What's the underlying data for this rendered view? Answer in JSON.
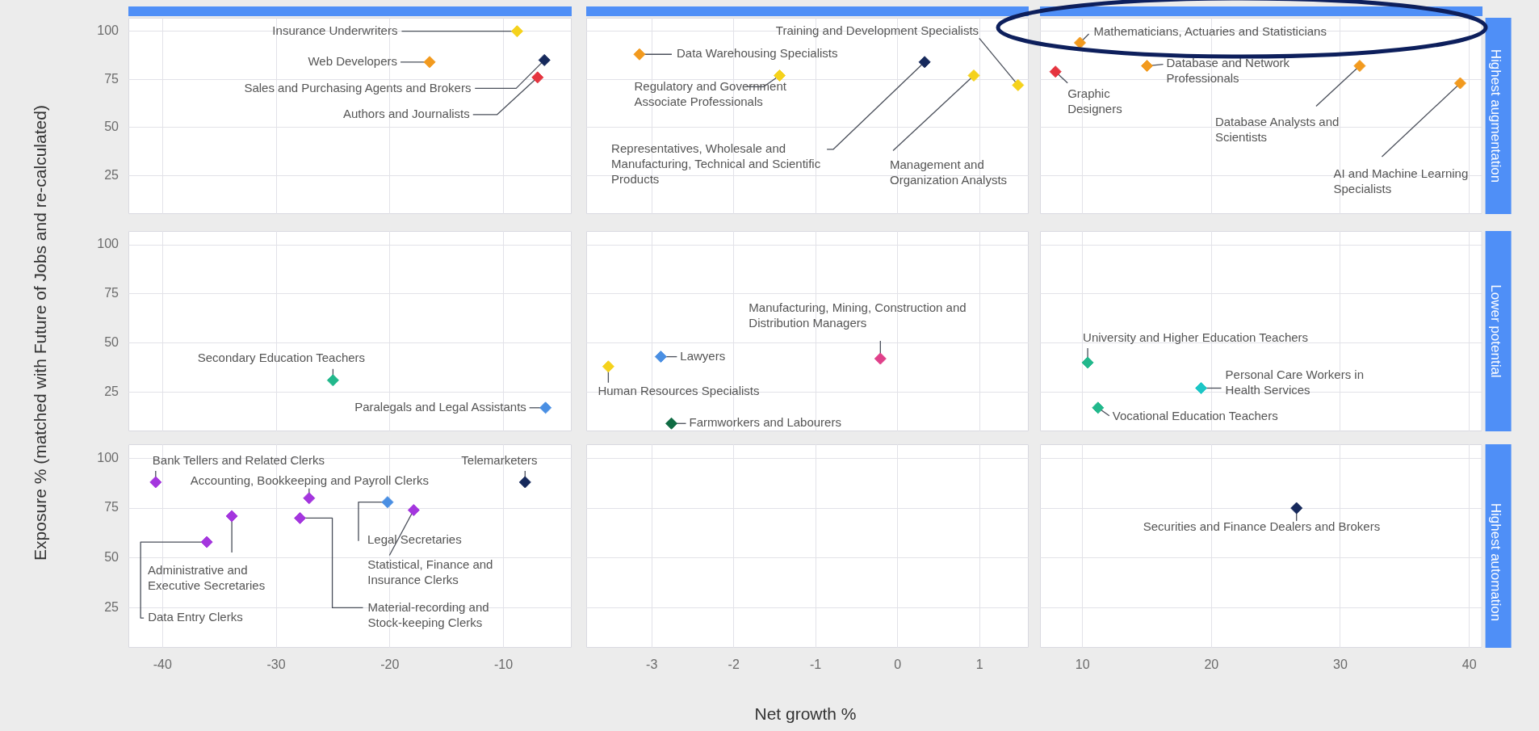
{
  "chart_data": [
    {
      "type": "scatter",
      "x": [
        -8.8,
        -16.5,
        -6.4,
        -7.0
      ],
      "values": [
        100,
        84,
        85,
        76
      ],
      "colors": [
        "#f5d21c",
        "#f29a1e",
        "#16295c",
        "#e5343f"
      ],
      "xlim": [
        -43,
        -4
      ],
      "xticks": [
        -40,
        -30,
        -20,
        -10
      ],
      "ylim": [
        5,
        107
      ],
      "yticks": [
        25,
        50,
        75,
        100
      ],
      "grid": true,
      "marker": "diamond",
      "tick_labels": "y",
      "annotations": [
        {
          "text": "Insurance Underwriters",
          "x": -8.8,
          "y": 100
        },
        {
          "text": "Web Developers",
          "x": -16.5,
          "y": 84
        },
        {
          "text": "Sales and Purchasing Agents and Brokers",
          "x": -6.4,
          "y": 85
        },
        {
          "text": "Authors and Journalists",
          "x": -7.0,
          "y": 76
        }
      ]
    },
    {
      "type": "scatter",
      "x": [
        -3.15,
        -1.44,
        0.33,
        0.93,
        1.47
      ],
      "values": [
        88,
        77,
        84,
        77,
        72
      ],
      "colors": [
        "#f29a1e",
        "#f5d21c",
        "#16295c",
        "#f5d21c",
        "#f5d21c"
      ],
      "xlim": [
        -3.8,
        1.6
      ],
      "xticks": [
        -3,
        -2,
        -1,
        0,
        1
      ],
      "ylim": [
        5,
        107
      ],
      "yticks": [
        25,
        50,
        75,
        100
      ],
      "grid": true,
      "marker": "diamond",
      "tick_labels": false,
      "annotations": [
        {
          "text": "Data Warehousing Specialists",
          "x": -3.15,
          "y": 88
        },
        {
          "text": "Regulatory and Government Associate Professionals",
          "x": -1.44,
          "y": 77
        },
        {
          "text": "Representatives, Wholesale and Manufacturing, Technical and Scientific Products",
          "x": 0.33,
          "y": 84
        },
        {
          "text": "Management and Organization Analysts",
          "x": 0.93,
          "y": 77
        },
        {
          "text": "Training and Development Specialists",
          "x": 1.47,
          "y": 72
        }
      ]
    },
    {
      "type": "scatter",
      "title": "Highest augmentation",
      "x": [
        9.8,
        7.9,
        15,
        31.5,
        39.3
      ],
      "values": [
        94,
        79,
        82,
        82,
        73
      ],
      "colors": [
        "#f29a1e",
        "#e5343f",
        "#f29a1e",
        "#f29a1e",
        "#f29a1e"
      ],
      "xlim": [
        6.7,
        41
      ],
      "xticks": [
        10,
        20,
        30,
        40
      ],
      "ylim": [
        5,
        107
      ],
      "yticks": [
        25,
        50,
        75,
        100
      ],
      "grid": true,
      "marker": "diamond",
      "tick_labels": false,
      "annotations": [
        {
          "text": "Mathematicians, Actuaries and Statisticians",
          "x": 9.8,
          "y": 94
        },
        {
          "text": "Graphic Designers",
          "x": 7.9,
          "y": 79
        },
        {
          "text": "Database and Network Professionals",
          "x": 15,
          "y": 82
        },
        {
          "text": "Database Analysts and Scientists",
          "x": 31.5,
          "y": 82
        },
        {
          "text": "AI and Machine Learning Specialists",
          "x": 39.3,
          "y": 73
        }
      ]
    },
    {
      "type": "scatter",
      "ylabel": "Exposure % (matched with Future of Jobs and re-calculated)",
      "x": [
        -25,
        -6.3
      ],
      "values": [
        31,
        17
      ],
      "colors": [
        "#22b88c",
        "#4a8fe3"
      ],
      "xlim": [
        -43,
        -4
      ],
      "xticks": [
        -40,
        -30,
        -20,
        -10
      ],
      "ylim": [
        5,
        107
      ],
      "yticks": [
        25,
        50,
        75,
        100
      ],
      "grid": true,
      "marker": "diamond",
      "tick_labels": "y",
      "annotations": [
        {
          "text": "Secondary Education Teachers",
          "x": -25,
          "y": 31
        },
        {
          "text": "Paralegals and Legal Assistants",
          "x": -6.3,
          "y": 17
        }
      ]
    },
    {
      "type": "scatter",
      "x": [
        -3.53,
        -2.89,
        -2.76,
        -0.21
      ],
      "values": [
        38,
        43,
        9,
        42
      ],
      "colors": [
        "#f5d21c",
        "#4a8fe3",
        "#0f6b43",
        "#e0408a"
      ],
      "xlim": [
        -3.8,
        1.6
      ],
      "xticks": [
        -3,
        -2,
        -1,
        0,
        1
      ],
      "ylim": [
        5,
        107
      ],
      "yticks": [
        25,
        50,
        75,
        100
      ],
      "grid": true,
      "marker": "diamond",
      "tick_labels": false,
      "annotations": [
        {
          "text": "Human Resources Specialists",
          "x": -3.53,
          "y": 38
        },
        {
          "text": "Lawyers",
          "x": -2.89,
          "y": 43
        },
        {
          "text": "Farmworkers and Labourers",
          "x": -2.76,
          "y": 9
        },
        {
          "text": "Manufacturing, Mining, Construction and Distribution Managers",
          "x": -0.21,
          "y": 42
        }
      ]
    },
    {
      "type": "scatter",
      "title": "Lower potential",
      "x": [
        10.4,
        19.2,
        11.2
      ],
      "values": [
        40,
        27,
        17
      ],
      "colors": [
        "#22b88c",
        "#1cc6c6",
        "#22b88c"
      ],
      "xlim": [
        6.7,
        41
      ],
      "xticks": [
        10,
        20,
        30,
        40
      ],
      "ylim": [
        5,
        107
      ],
      "yticks": [
        25,
        50,
        75,
        100
      ],
      "grid": true,
      "marker": "diamond",
      "tick_labels": false,
      "annotations": [
        {
          "text": "University and Higher Education Teachers",
          "x": 10.4,
          "y": 40
        },
        {
          "text": "Personal Care Workers in Health Services",
          "x": 19.2,
          "y": 27
        },
        {
          "text": "Vocational Education Teachers",
          "x": 11.2,
          "y": 17
        }
      ]
    },
    {
      "type": "scatter",
      "x": [
        -40.6,
        -27.1,
        -33.9,
        -36.1,
        -27.9,
        -20.2,
        -17.9,
        -8.1
      ],
      "values": [
        88,
        80,
        71,
        58,
        70,
        78,
        74,
        88
      ],
      "colors": [
        "#a436de",
        "#a436de",
        "#a436de",
        "#a436de",
        "#a436de",
        "#4a8fe3",
        "#a436de",
        "#16295c"
      ],
      "xlim": [
        -43,
        -4
      ],
      "xticks": [
        -40,
        -30,
        -20,
        -10
      ],
      "ylim": [
        5,
        107
      ],
      "yticks": [
        25,
        50,
        75,
        100
      ],
      "grid": true,
      "marker": "diamond",
      "annotations": [
        {
          "text": "Bank Tellers and Related Clerks",
          "x": -40.6,
          "y": 88
        },
        {
          "text": "Accounting, Bookkeeping and Payroll Clerks",
          "x": -27.1,
          "y": 80
        },
        {
          "text": "Administrative and Executive Secretaries",
          "x": -33.9,
          "y": 71
        },
        {
          "text": "Data Entry Clerks",
          "x": -36.1,
          "y": 58
        },
        {
          "text": "Material-recording and Stock-keeping Clerks",
          "x": -27.9,
          "y": 70
        },
        {
          "text": "Legal Secretaries",
          "x": -20.2,
          "y": 78
        },
        {
          "text": "Statistical, Finance and Insurance Clerks",
          "x": -17.9,
          "y": 74
        },
        {
          "text": "Telemarketers",
          "x": -8.1,
          "y": 88
        }
      ]
    },
    {
      "type": "scatter",
      "xlabel": "Net growth %",
      "xlim": [
        -3.8,
        1.6
      ],
      "xticks": [
        -3,
        -2,
        -1,
        0,
        1
      ],
      "ylim": [
        5,
        107
      ],
      "yticks": [
        25,
        50,
        75,
        100
      ],
      "grid": true,
      "marker": "diamond",
      "tick_labels": "x"
    },
    {
      "type": "scatter",
      "title": "Highest automation",
      "x": [
        26.6
      ],
      "values": [
        75
      ],
      "colors": [
        "#16295c"
      ],
      "xlim": [
        6.7,
        41
      ],
      "xticks": [
        10,
        20,
        30,
        40
      ],
      "ylim": [
        5,
        107
      ],
      "yticks": [
        25,
        50,
        75,
        100
      ],
      "grid": true,
      "marker": "diamond",
      "tick_labels": "x",
      "annotations": [
        {
          "text": "Securities and Finance Dealers and Brokers",
          "x": 26.6,
          "y": 75
        }
      ]
    }
  ]
}
